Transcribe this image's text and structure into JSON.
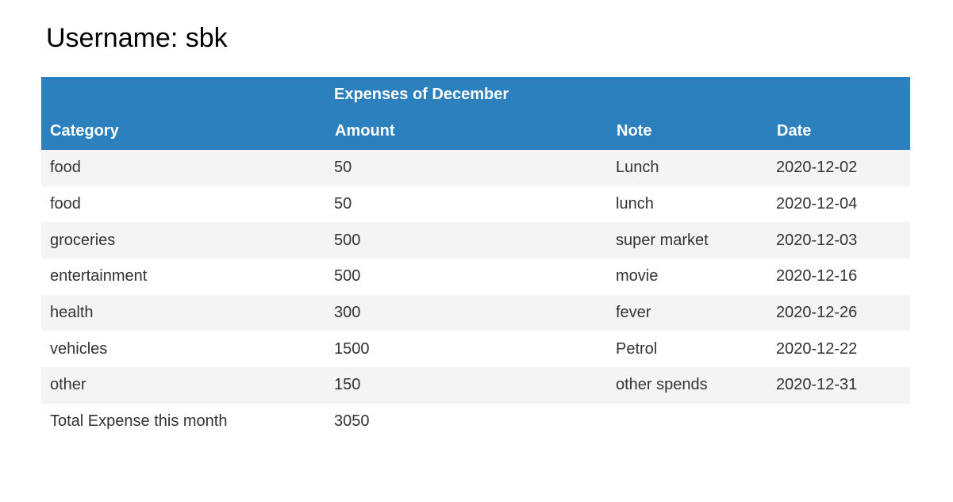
{
  "user": {
    "username_label": "Username: sbk"
  },
  "table": {
    "month_title": "Expenses of December",
    "columns": {
      "category": "Category",
      "amount": "Amount",
      "note": "Note",
      "date": "Date"
    },
    "rows": [
      {
        "category": "food",
        "amount": "50",
        "note": "Lunch",
        "date": "2020-12-02"
      },
      {
        "category": "food",
        "amount": "50",
        "note": "lunch",
        "date": "2020-12-04"
      },
      {
        "category": "groceries",
        "amount": "500",
        "note": "super market",
        "date": "2020-12-03"
      },
      {
        "category": "entertainment",
        "amount": "500",
        "note": "movie",
        "date": "2020-12-16"
      },
      {
        "category": "health",
        "amount": "300",
        "note": "fever",
        "date": "2020-12-26"
      },
      {
        "category": "vehicles",
        "amount": "1500",
        "note": "Petrol",
        "date": "2020-12-22"
      },
      {
        "category": "other",
        "amount": "150",
        "note": "other spends",
        "date": "2020-12-31"
      }
    ],
    "total": {
      "label": "Total Expense this month",
      "amount": "3050"
    }
  },
  "colors": {
    "header_bg": "#2b80bd",
    "stripe_bg": "#f4f4f4",
    "text": "#333333"
  }
}
